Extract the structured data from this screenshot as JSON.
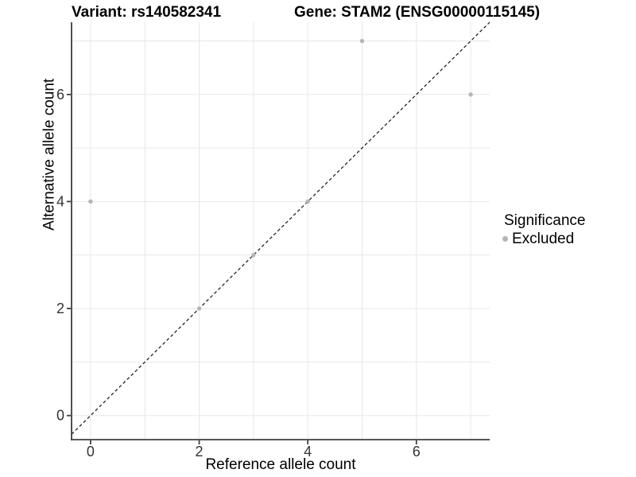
{
  "titles": {
    "variant": "Variant: rs140582341",
    "gene": "Gene: STAM2 (ENSG00000115145)"
  },
  "chart_data": {
    "type": "scatter",
    "variant_title": "Variant: rs140582341",
    "gene_title": "Gene: STAM2 (ENSG00000115145)",
    "xlabel": "Reference allele count",
    "ylabel": "Alternative allele count",
    "xlim": [
      -0.35,
      7.35
    ],
    "ylim": [
      -0.45,
      7.35
    ],
    "x_ticks": [
      0,
      2,
      4,
      6
    ],
    "y_ticks": [
      0,
      2,
      4,
      6
    ],
    "gridlines": [
      0,
      1,
      2,
      3,
      4,
      5,
      6,
      7
    ],
    "grid": true,
    "reference_line": {
      "type": "abline",
      "slope": 1,
      "intercept": 0,
      "style": "dashed"
    },
    "series": [
      {
        "name": "Excluded",
        "color": "#b5b5b5",
        "points": [
          [
            0,
            4
          ],
          [
            2,
            2
          ],
          [
            3,
            3
          ],
          [
            4,
            4
          ],
          [
            5,
            7
          ],
          [
            7,
            6
          ]
        ]
      }
    ],
    "legend": {
      "title": "Significance",
      "position": "right",
      "items": [
        {
          "label": "Excluded",
          "color": "#b5b5b5"
        }
      ]
    }
  },
  "colors": {
    "point": "#b5b5b5",
    "grid": "#e8e8e8",
    "axis": "#3f3f3f",
    "tick_text": "#333333",
    "dashed_line": "#141414",
    "background": "#ffffff"
  }
}
